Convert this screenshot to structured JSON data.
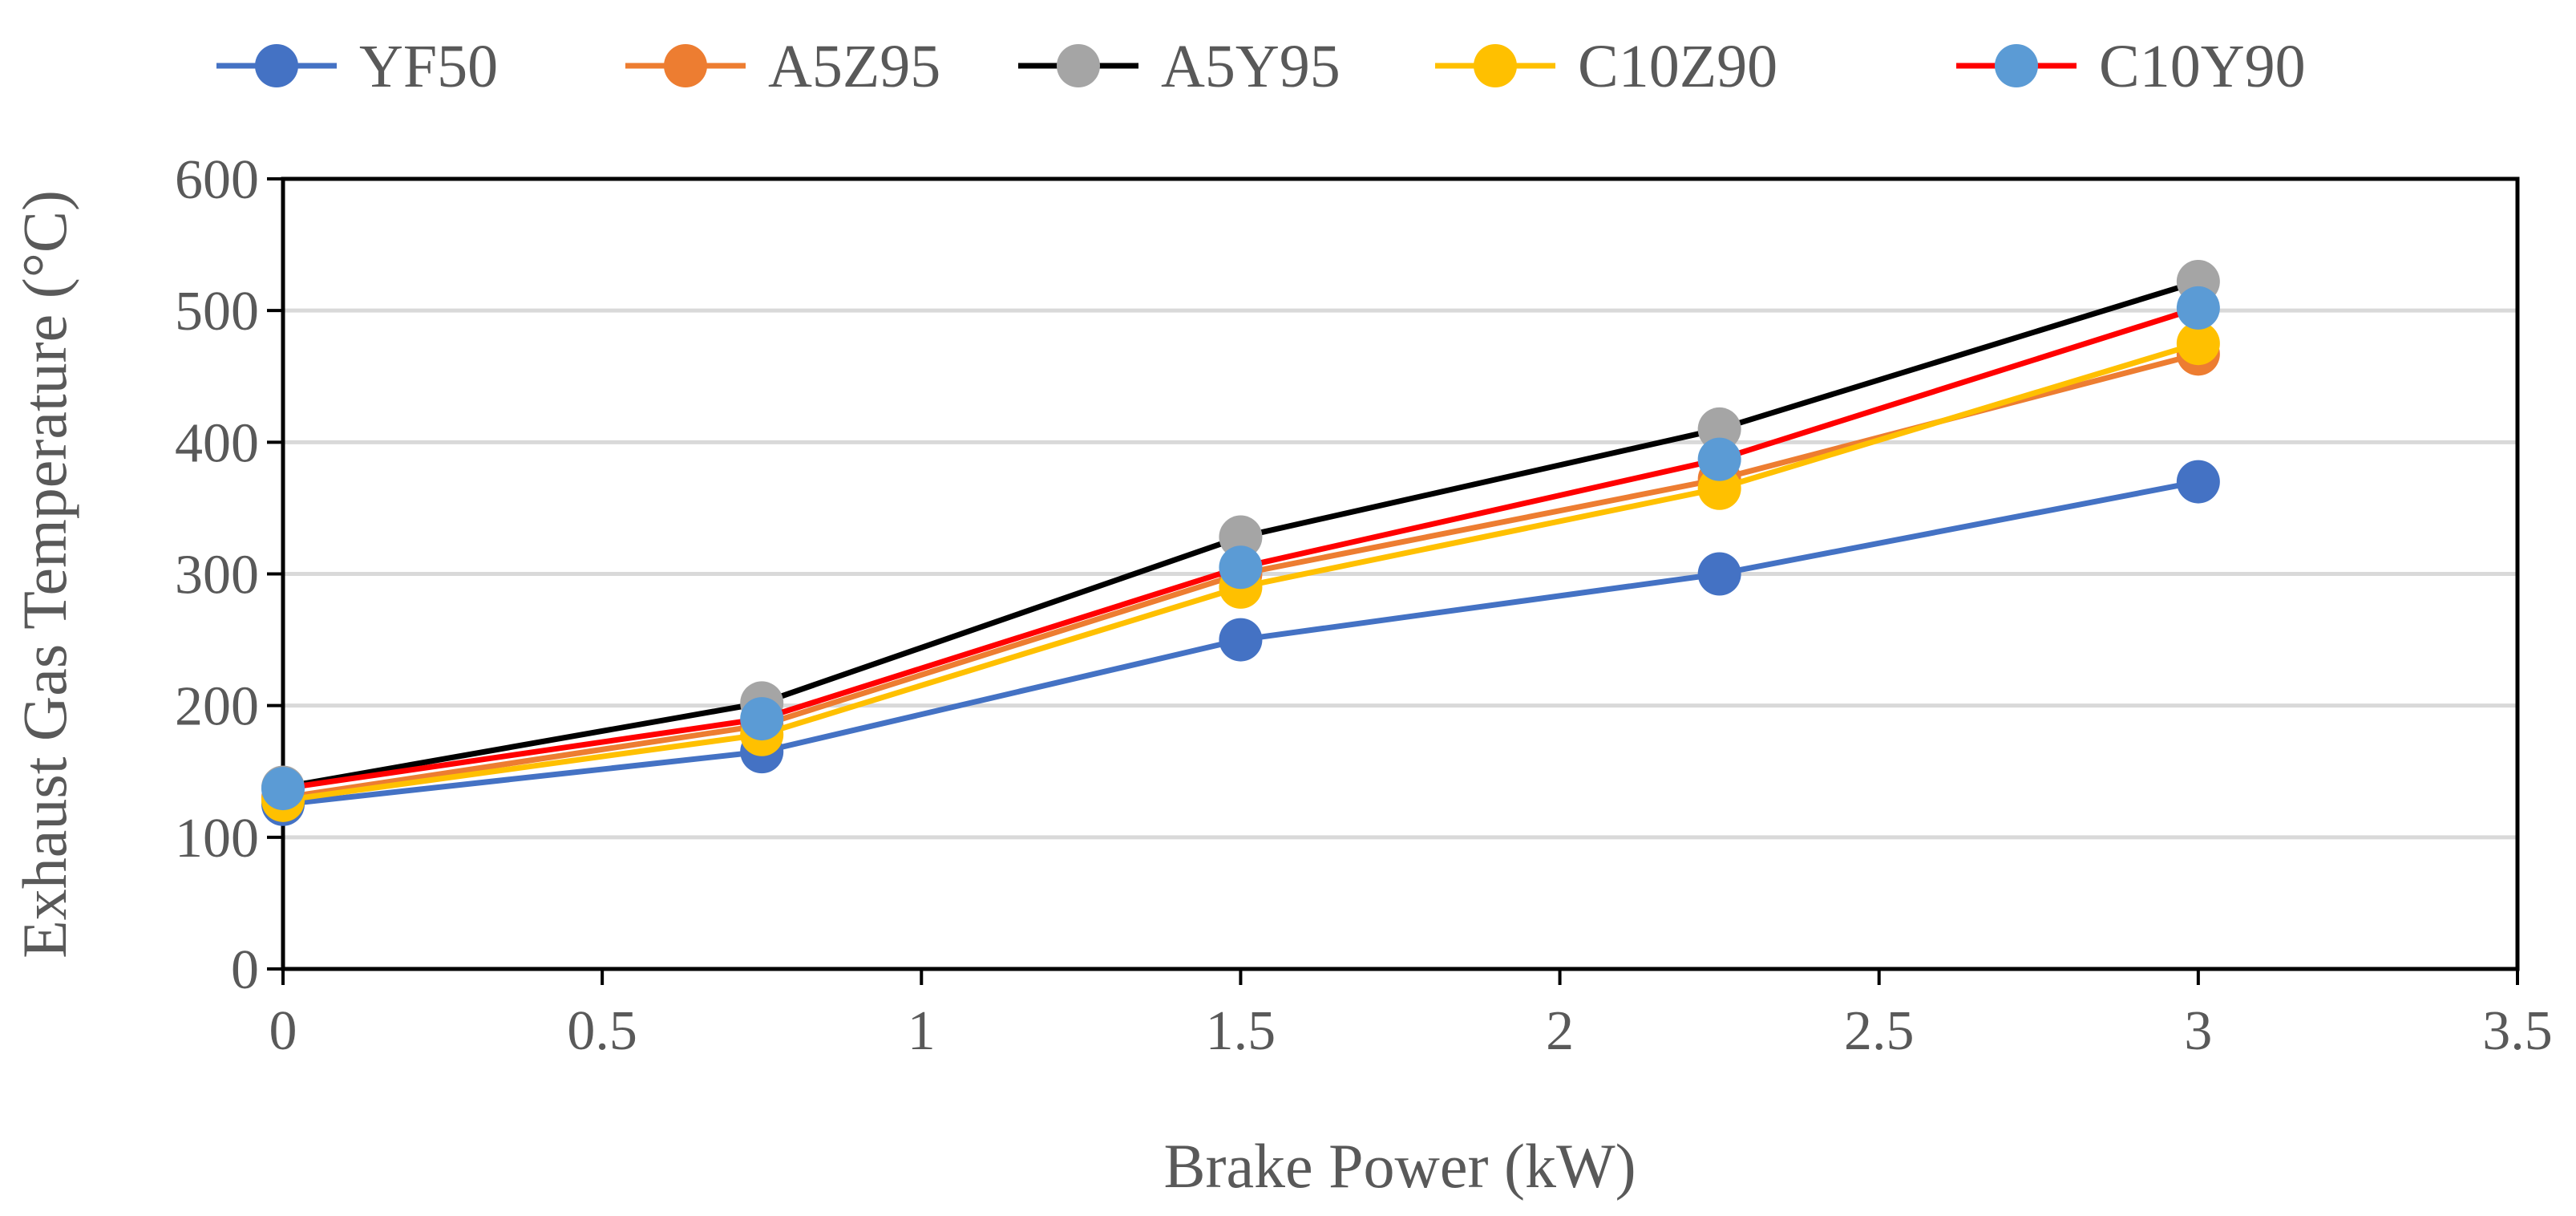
{
  "chart_data": {
    "type": "line",
    "title": "",
    "xlabel": "Brake Power (kW)",
    "ylabel": "Exhaust Gas Temperature (°C)",
    "xlim": [
      0,
      3.5
    ],
    "ylim": [
      0,
      600
    ],
    "xticks": [
      0,
      0.5,
      1,
      1.5,
      2,
      2.5,
      3,
      3.5
    ],
    "yticks": [
      0,
      100,
      200,
      300,
      400,
      500,
      600
    ],
    "xtick_labels": [
      "0",
      "0.5",
      "1",
      "1.5",
      "2",
      "2.5",
      "3",
      "3.5"
    ],
    "ytick_labels": [
      "0",
      "100",
      "200",
      "300",
      "400",
      "500",
      "600"
    ],
    "grid": "horizontal",
    "legend_position": "top",
    "x": [
      0,
      0.75,
      1.5,
      2.25,
      3
    ],
    "series": [
      {
        "name": "YF50",
        "line_color": "#4472C4",
        "marker_color": "#4472C4",
        "values": [
          125,
          165,
          250,
          300,
          370
        ]
      },
      {
        "name": "A5Z95",
        "line_color": "#ED7D31",
        "marker_color": "#ED7D31",
        "values": [
          130,
          185,
          300,
          372,
          467
        ]
      },
      {
        "name": "A5Y95",
        "line_color": "#000000",
        "marker_color": "#A5A5A5",
        "values": [
          138,
          202,
          328,
          410,
          522
        ]
      },
      {
        "name": "C10Z90",
        "line_color": "#FFC000",
        "marker_color": "#FFC000",
        "values": [
          128,
          178,
          290,
          365,
          475
        ]
      },
      {
        "name": "C10Y90",
        "line_color": "#FF0000",
        "marker_color": "#5B9BD5",
        "values": [
          137,
          190,
          305,
          387,
          502
        ]
      }
    ]
  }
}
